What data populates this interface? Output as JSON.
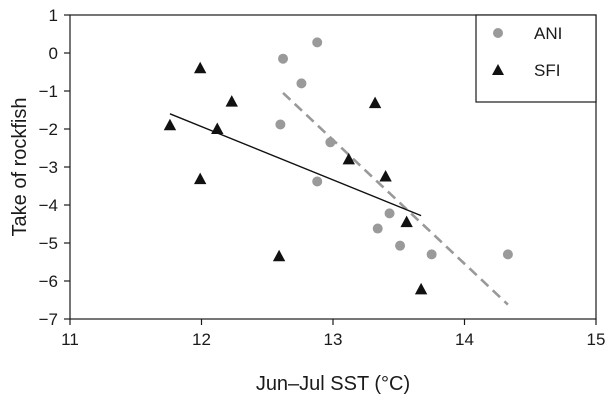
{
  "chart_data": {
    "type": "scatter",
    "title": "",
    "xlabel": "Jun–Jul SST (°C)",
    "ylabel": "Take of rockfish",
    "xlim": [
      11,
      15
    ],
    "ylim": [
      -7,
      1
    ],
    "xticks": [
      11,
      12,
      13,
      14,
      15
    ],
    "yticks": [
      1,
      0,
      -1,
      -2,
      -3,
      -4,
      -5,
      -6,
      -7
    ],
    "xtick_labels": [
      "11",
      "12",
      "13",
      "14",
      "15"
    ],
    "ytick_labels": [
      "1",
      "0",
      "−1",
      "−2",
      "−3",
      "−4",
      "−5",
      "−6",
      "−7"
    ],
    "grid": false,
    "legend": {
      "position": "top-right",
      "entries": [
        "ANI",
        "SFI"
      ]
    },
    "series": [
      {
        "name": "ANI",
        "marker": "circle",
        "color": "#9a9a9a",
        "points": [
          {
            "x": 12.62,
            "y": -0.15
          },
          {
            "x": 12.88,
            "y": 0.28
          },
          {
            "x": 12.76,
            "y": -0.8
          },
          {
            "x": 12.6,
            "y": -1.88
          },
          {
            "x": 12.98,
            "y": -2.35
          },
          {
            "x": 12.88,
            "y": -3.38
          },
          {
            "x": 13.43,
            "y": -4.22
          },
          {
            "x": 13.34,
            "y": -4.62
          },
          {
            "x": 13.51,
            "y": -5.07
          },
          {
            "x": 13.75,
            "y": -5.3
          },
          {
            "x": 14.33,
            "y": -5.3
          }
        ],
        "trend": {
          "style": "dashed",
          "color": "#999999",
          "x": [
            12.62,
            14.33
          ],
          "y": [
            -1.05,
            -6.62
          ]
        }
      },
      {
        "name": "SFI",
        "marker": "triangle",
        "color": "#111111",
        "points": [
          {
            "x": 11.76,
            "y": -1.9
          },
          {
            "x": 11.99,
            "y": -0.4
          },
          {
            "x": 11.99,
            "y": -3.32
          },
          {
            "x": 12.12,
            "y": -2.0
          },
          {
            "x": 12.23,
            "y": -1.28
          },
          {
            "x": 12.59,
            "y": -5.35
          },
          {
            "x": 13.12,
            "y": -2.8
          },
          {
            "x": 13.32,
            "y": -1.32
          },
          {
            "x": 13.4,
            "y": -3.25
          },
          {
            "x": 13.56,
            "y": -4.45
          },
          {
            "x": 13.67,
            "y": -6.22
          }
        ],
        "trend": {
          "style": "solid",
          "color": "#111111",
          "x": [
            11.76,
            13.67
          ],
          "y": [
            -1.6,
            -4.28
          ]
        }
      }
    ]
  }
}
